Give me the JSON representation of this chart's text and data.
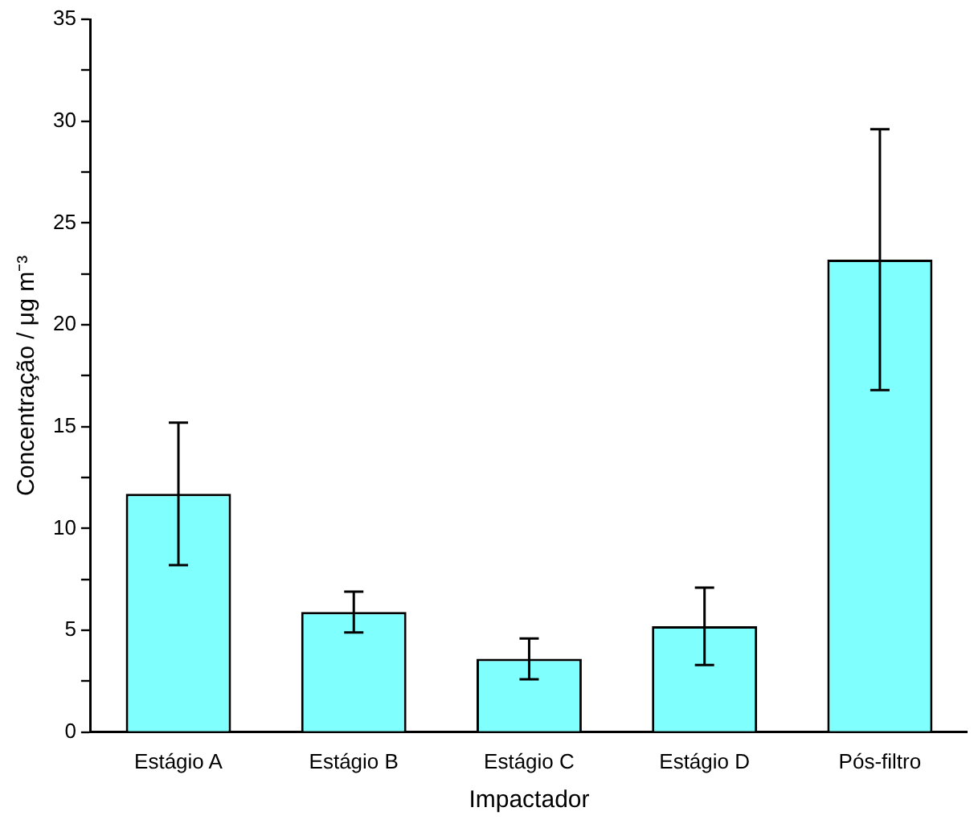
{
  "chart_data": {
    "type": "bar",
    "xlabel": "Impactador",
    "ylabel": "Concentração / μg m⁻³",
    "categories": [
      "Estágio A",
      "Estágio B",
      "Estágio C",
      "Estágio D",
      "Pós-filtro"
    ],
    "values": [
      11.7,
      5.9,
      3.6,
      5.2,
      23.2
    ],
    "errors": [
      3.5,
      1.0,
      1.0,
      1.9,
      6.4
    ],
    "color": "#80ffff",
    "ylim": [
      0,
      35
    ],
    "yticks": [
      0,
      {
        "value": 2.5,
        "label": null
      },
      5,
      {
        "value": 7.5,
        "label": null
      },
      10,
      {
        "value": 12.5,
        "label": null
      },
      15,
      {
        "value": 17.5,
        "label": null
      },
      20,
      {
        "value": 22.5,
        "label": null
      },
      25,
      {
        "value": 27.5,
        "label": null
      },
      30,
      {
        "value": 32.5,
        "label": null
      },
      35
    ],
    "grid": false,
    "legend": false
  }
}
